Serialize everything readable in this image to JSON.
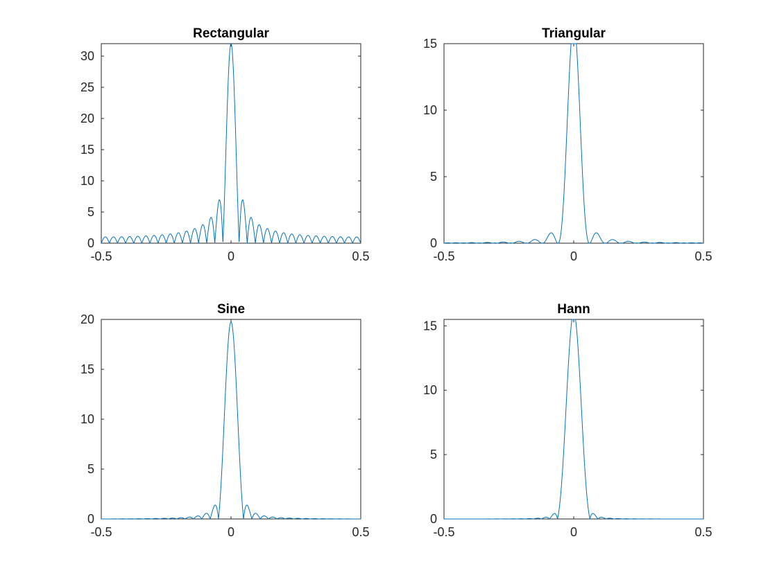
{
  "figure": {
    "background": "#ffffff",
    "axis_color": "#262626"
  },
  "chart_data": [
    {
      "type": "line",
      "title": "Rectangular",
      "xlabel": "",
      "ylabel": "",
      "xlim": [
        -0.5,
        0.5
      ],
      "ylim": [
        0,
        32
      ],
      "xticks": [
        -0.5,
        0,
        0.5
      ],
      "xtick_labels": [
        "-0.5",
        "0",
        "0.5"
      ],
      "yticks": [
        0,
        5,
        10,
        15,
        20,
        25,
        30
      ],
      "ytick_labels": [
        "0",
        "5",
        "10",
        "15",
        "20",
        "25",
        "30"
      ],
      "grid": false,
      "series": [
        {
          "color": "#0072bd",
          "window": "rect",
          "N": 32,
          "samples": 2001
        }
      ]
    },
    {
      "type": "line",
      "title": "Triangular",
      "xlabel": "",
      "ylabel": "",
      "xlim": [
        -0.5,
        0.5
      ],
      "ylim": [
        0,
        15
      ],
      "xticks": [
        -0.5,
        0,
        0.5
      ],
      "xtick_labels": [
        "-0.5",
        "0",
        "0.5"
      ],
      "yticks": [
        0,
        5,
        10,
        15
      ],
      "ytick_labels": [
        "0",
        "5",
        "10",
        "15"
      ],
      "grid": false,
      "series": [
        {
          "color": "#0072bd",
          "window": "triang",
          "N": 32,
          "samples": 2001
        }
      ]
    },
    {
      "type": "line",
      "title": "Sine",
      "xlabel": "",
      "ylabel": "",
      "xlim": [
        -0.5,
        0.5
      ],
      "ylim": [
        0,
        20
      ],
      "xticks": [
        -0.5,
        0,
        0.5
      ],
      "xtick_labels": [
        "-0.5",
        "0",
        "0.5"
      ],
      "yticks": [
        0,
        5,
        10,
        15,
        20
      ],
      "ytick_labels": [
        "0",
        "5",
        "10",
        "15",
        "20"
      ],
      "grid": false,
      "series": [
        {
          "color": "#0072bd",
          "window": "sine",
          "N": 31,
          "samples": 2001
        }
      ]
    },
    {
      "type": "line",
      "title": "Hann",
      "xlabel": "",
      "ylabel": "",
      "xlim": [
        -0.5,
        0.5
      ],
      "ylim": [
        0,
        15.5
      ],
      "xticks": [
        -0.5,
        0,
        0.5
      ],
      "xtick_labels": [
        "-0.5",
        "0",
        "0.5"
      ],
      "yticks": [
        0,
        5,
        10,
        15
      ],
      "ytick_labels": [
        "0",
        "5",
        "10",
        "15"
      ],
      "grid": false,
      "series": [
        {
          "color": "#0072bd",
          "window": "hann",
          "N": 31,
          "samples": 2001
        }
      ]
    }
  ]
}
